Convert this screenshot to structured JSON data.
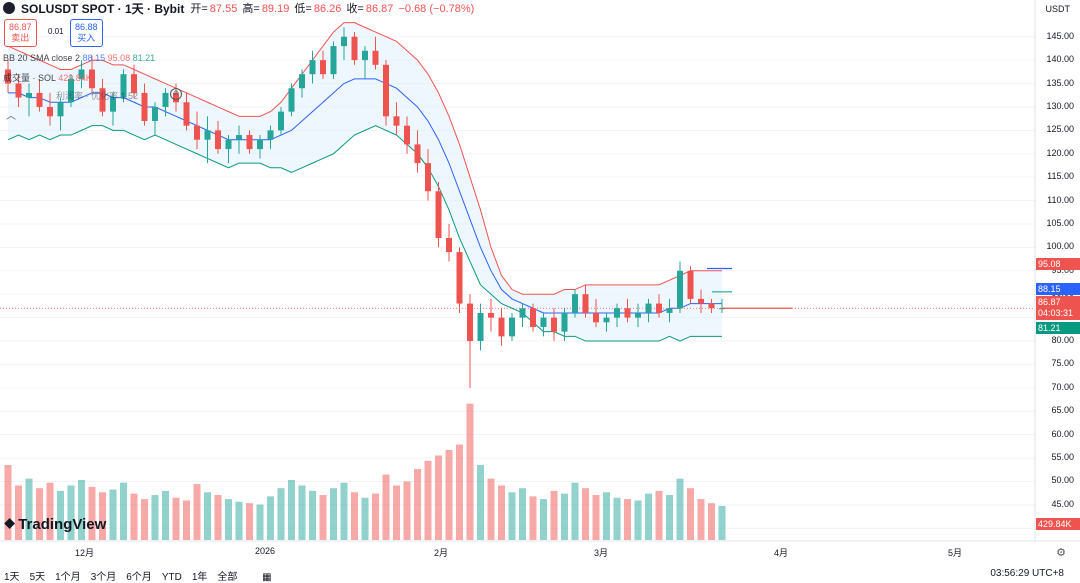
{
  "header": {
    "symbol_title": "SOLUSDT SPOT · 1天 · Bybit",
    "open_label": "开=",
    "open_value": "87.55",
    "high_label": "高=",
    "high_value": "89.19",
    "low_label": "低=",
    "low_value": "86.26",
    "close_label": "收=",
    "close_value": "86.87",
    "change_value": "−0.68 (−0.78%)"
  },
  "trade": {
    "sell_price": "86.87",
    "sell_label": "卖出",
    "spread": "0.01",
    "buy_price": "86.88",
    "buy_label": "买入"
  },
  "indicators": {
    "bb_label": "BB 20 SMA close 2",
    "bb_mid": "88.15",
    "bb_upper": "95.08",
    "bb_lower": "81.21",
    "volume_label": "成交量 · SOL",
    "volume_value": "429.84K",
    "extra_label": "利润率 · 优化率",
    "extra_value": "1.52"
  },
  "price_axis": {
    "currency": "USDT",
    "ticks": [
      "145.00",
      "140.00",
      "135.00",
      "130.00",
      "125.00",
      "120.00",
      "115.00",
      "110.00",
      "105.00",
      "100.00",
      "95.00",
      "90.00",
      "85.00",
      "80.00",
      "75.00",
      "70.00",
      "65.00",
      "60.00",
      "55.00",
      "50.00",
      "45.00",
      "40.00"
    ],
    "tag_upper": "95.08",
    "tag_mid": "88.15",
    "tag_close": "86.87",
    "tag_countdown": "04:03:31",
    "tag_lower": "81.21",
    "tag_volume": "429.84K"
  },
  "time_axis": {
    "labels": [
      "12月",
      "2026",
      "2月",
      "3月",
      "4月",
      "5月"
    ]
  },
  "toolbar": {
    "ranges": [
      "1天",
      "5天",
      "1个月",
      "3个月",
      "6个月",
      "YTD",
      "1年",
      "全部"
    ],
    "clock": "03:56:29 UTC+8"
  },
  "branding": {
    "logo_text": "TradingView"
  },
  "colors": {
    "up": "#26a69a",
    "down": "#ef5350",
    "bb_upper": "#ef5350",
    "bb_mid": "#2962ff",
    "bb_lower": "#089981",
    "band_fill": "#e3f2fd"
  },
  "chart_data": {
    "type": "candlestick",
    "y_range": [
      60,
      148
    ],
    "x_labels": [
      "12月",
      "2026",
      "2月",
      "3月",
      "4月",
      "5月"
    ],
    "candles": [
      [
        138,
        140,
        133,
        135
      ],
      [
        135,
        137,
        130,
        132
      ],
      [
        132,
        135,
        128,
        133
      ],
      [
        133,
        136,
        129,
        130
      ],
      [
        130,
        133,
        126,
        128
      ],
      [
        128,
        132,
        125,
        131
      ],
      [
        131,
        137,
        130,
        136
      ],
      [
        136,
        140,
        134,
        138
      ],
      [
        138,
        141,
        133,
        134
      ],
      [
        134,
        136,
        128,
        129
      ],
      [
        129,
        133,
        126,
        132
      ],
      [
        132,
        138,
        131,
        137
      ],
      [
        137,
        139,
        132,
        133
      ],
      [
        133,
        135,
        126,
        127
      ],
      [
        127,
        131,
        124,
        130
      ],
      [
        130,
        134,
        128,
        133
      ],
      [
        133,
        135,
        129,
        131
      ],
      [
        131,
        133,
        125,
        126
      ],
      [
        126,
        129,
        121,
        123
      ],
      [
        123,
        128,
        118,
        125
      ],
      [
        125,
        127,
        120,
        121
      ],
      [
        121,
        124,
        118,
        123
      ],
      [
        123,
        126,
        120,
        124
      ],
      [
        124,
        125,
        120,
        121
      ],
      [
        121,
        124,
        119,
        123
      ],
      [
        123,
        126,
        121,
        125
      ],
      [
        125,
        130,
        124,
        129
      ],
      [
        129,
        135,
        128,
        134
      ],
      [
        134,
        138,
        132,
        137
      ],
      [
        137,
        142,
        135,
        140
      ],
      [
        140,
        142,
        136,
        137
      ],
      [
        137,
        144,
        136,
        143
      ],
      [
        143,
        147,
        140,
        145
      ],
      [
        145,
        146,
        139,
        140
      ],
      [
        140,
        143,
        136,
        142
      ],
      [
        142,
        145,
        138,
        139
      ],
      [
        139,
        140,
        126,
        128
      ],
      [
        128,
        131,
        124,
        126
      ],
      [
        126,
        128,
        120,
        122
      ],
      [
        122,
        125,
        116,
        118
      ],
      [
        118,
        121,
        110,
        112
      ],
      [
        112,
        114,
        100,
        102
      ],
      [
        102,
        105,
        97,
        99
      ],
      [
        99,
        100,
        86,
        88
      ],
      [
        88,
        90,
        70,
        80
      ],
      [
        80,
        88,
        78,
        86
      ],
      [
        86,
        89,
        82,
        85
      ],
      [
        85,
        87,
        79,
        81
      ],
      [
        81,
        86,
        80,
        85
      ],
      [
        85,
        88,
        83,
        87
      ],
      [
        87,
        88,
        82,
        83
      ],
      [
        83,
        86,
        81,
        85
      ],
      [
        85,
        87,
        80,
        82
      ],
      [
        82,
        87,
        80,
        86
      ],
      [
        86,
        91,
        85,
        90
      ],
      [
        90,
        92,
        85,
        86
      ],
      [
        86,
        89,
        83,
        84
      ],
      [
        84,
        86,
        82,
        85
      ],
      [
        85,
        88,
        83,
        87
      ],
      [
        87,
        89,
        84,
        85
      ],
      [
        85,
        88,
        83,
        86
      ],
      [
        86,
        89,
        84,
        88
      ],
      [
        88,
        90,
        85,
        86
      ],
      [
        86,
        89,
        84,
        87
      ],
      [
        87,
        97,
        86,
        95
      ],
      [
        95,
        96,
        88,
        89
      ],
      [
        89,
        91,
        86,
        88
      ],
      [
        88,
        89,
        86,
        87
      ],
      [
        87,
        89,
        86,
        87
      ]
    ],
    "volumes": [
      55,
      40,
      45,
      38,
      42,
      36,
      40,
      44,
      39,
      35,
      37,
      42,
      34,
      30,
      33,
      36,
      31,
      29,
      41,
      35,
      33,
      30,
      28,
      27,
      26,
      32,
      38,
      44,
      40,
      36,
      33,
      38,
      42,
      35,
      31,
      34,
      48,
      40,
      43,
      52,
      58,
      62,
      66,
      70,
      100,
      55,
      45,
      40,
      35,
      38,
      32,
      30,
      36,
      34,
      42,
      38,
      33,
      35,
      31,
      30,
      29,
      34,
      36,
      33,
      45,
      38,
      30,
      27,
      25
    ],
    "bb_upper": [
      143,
      142,
      141,
      140,
      139,
      138,
      138,
      139,
      140,
      140,
      139,
      139,
      138,
      137,
      136,
      135,
      134,
      133,
      132,
      131,
      130,
      129,
      128,
      128,
      128,
      129,
      131,
      134,
      137,
      140,
      143,
      146,
      148,
      148,
      147,
      146,
      145,
      144,
      142,
      140,
      137,
      133,
      128,
      122,
      115,
      108,
      100,
      94,
      91,
      90,
      90,
      90,
      90,
      91,
      91,
      92,
      92,
      92,
      92,
      92,
      92,
      92,
      92,
      93,
      94,
      95,
      95,
      95,
      95
    ],
    "bb_mid": [
      133,
      133,
      132,
      132,
      131,
      131,
      131,
      132,
      133,
      133,
      132,
      132,
      131,
      130,
      130,
      129,
      128,
      127,
      126,
      125,
      124,
      123,
      123,
      123,
      123,
      123,
      124,
      125,
      127,
      129,
      131,
      133,
      135,
      136,
      136,
      136,
      135,
      134,
      132,
      130,
      127,
      123,
      118,
      112,
      106,
      100,
      95,
      91,
      89,
      88,
      87,
      86,
      86,
      86,
      86,
      86,
      86,
      86,
      86,
      86,
      86,
      86,
      86,
      87,
      87,
      88,
      88,
      88,
      88
    ],
    "bb_lower": [
      123,
      124,
      123,
      124,
      123,
      124,
      124,
      125,
      126,
      126,
      125,
      125,
      124,
      123,
      124,
      123,
      122,
      121,
      120,
      119,
      118,
      117,
      118,
      118,
      118,
      117,
      117,
      116,
      117,
      118,
      119,
      120,
      122,
      124,
      125,
      126,
      125,
      124,
      122,
      120,
      117,
      113,
      108,
      102,
      97,
      92,
      90,
      88,
      87,
      86,
      84,
      82,
      82,
      81,
      81,
      80,
      80,
      80,
      80,
      80,
      80,
      80,
      80,
      81,
      80,
      81,
      81,
      81,
      81
    ]
  }
}
